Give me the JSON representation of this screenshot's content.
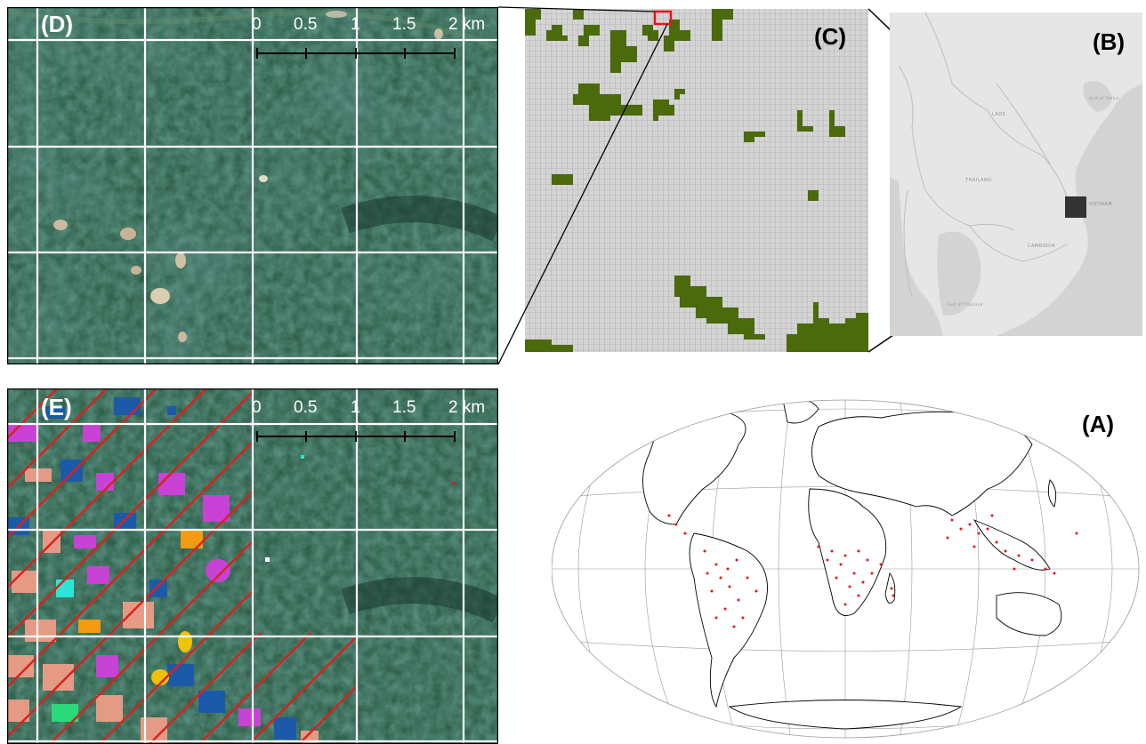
{
  "panels": {
    "a": {
      "label": "(A)"
    },
    "b": {
      "label": "(B)"
    },
    "c": {
      "label": "(C)"
    },
    "d": {
      "label": "(D)"
    },
    "e": {
      "label": "(E)"
    }
  },
  "scalebar": {
    "ticks": [
      "0",
      "0.5",
      "1",
      "1.5",
      "2 km"
    ]
  },
  "map_b": {
    "countries": [
      "LAOS",
      "THAILAND",
      "CAMBODIA",
      "VIETNAM"
    ],
    "water": [
      "Gulf of Tonkin",
      "Gulf of Thailand"
    ]
  },
  "colors": {
    "forest_dark": "#2d5a47",
    "grid_line": "#ffffff",
    "deforestation_cell": "#4a6a0c",
    "sample_point": "#e8141c",
    "hatch": "#d9221d",
    "mekong_land": "#e6e6e6",
    "mekong_water": "#d3d3d3"
  }
}
